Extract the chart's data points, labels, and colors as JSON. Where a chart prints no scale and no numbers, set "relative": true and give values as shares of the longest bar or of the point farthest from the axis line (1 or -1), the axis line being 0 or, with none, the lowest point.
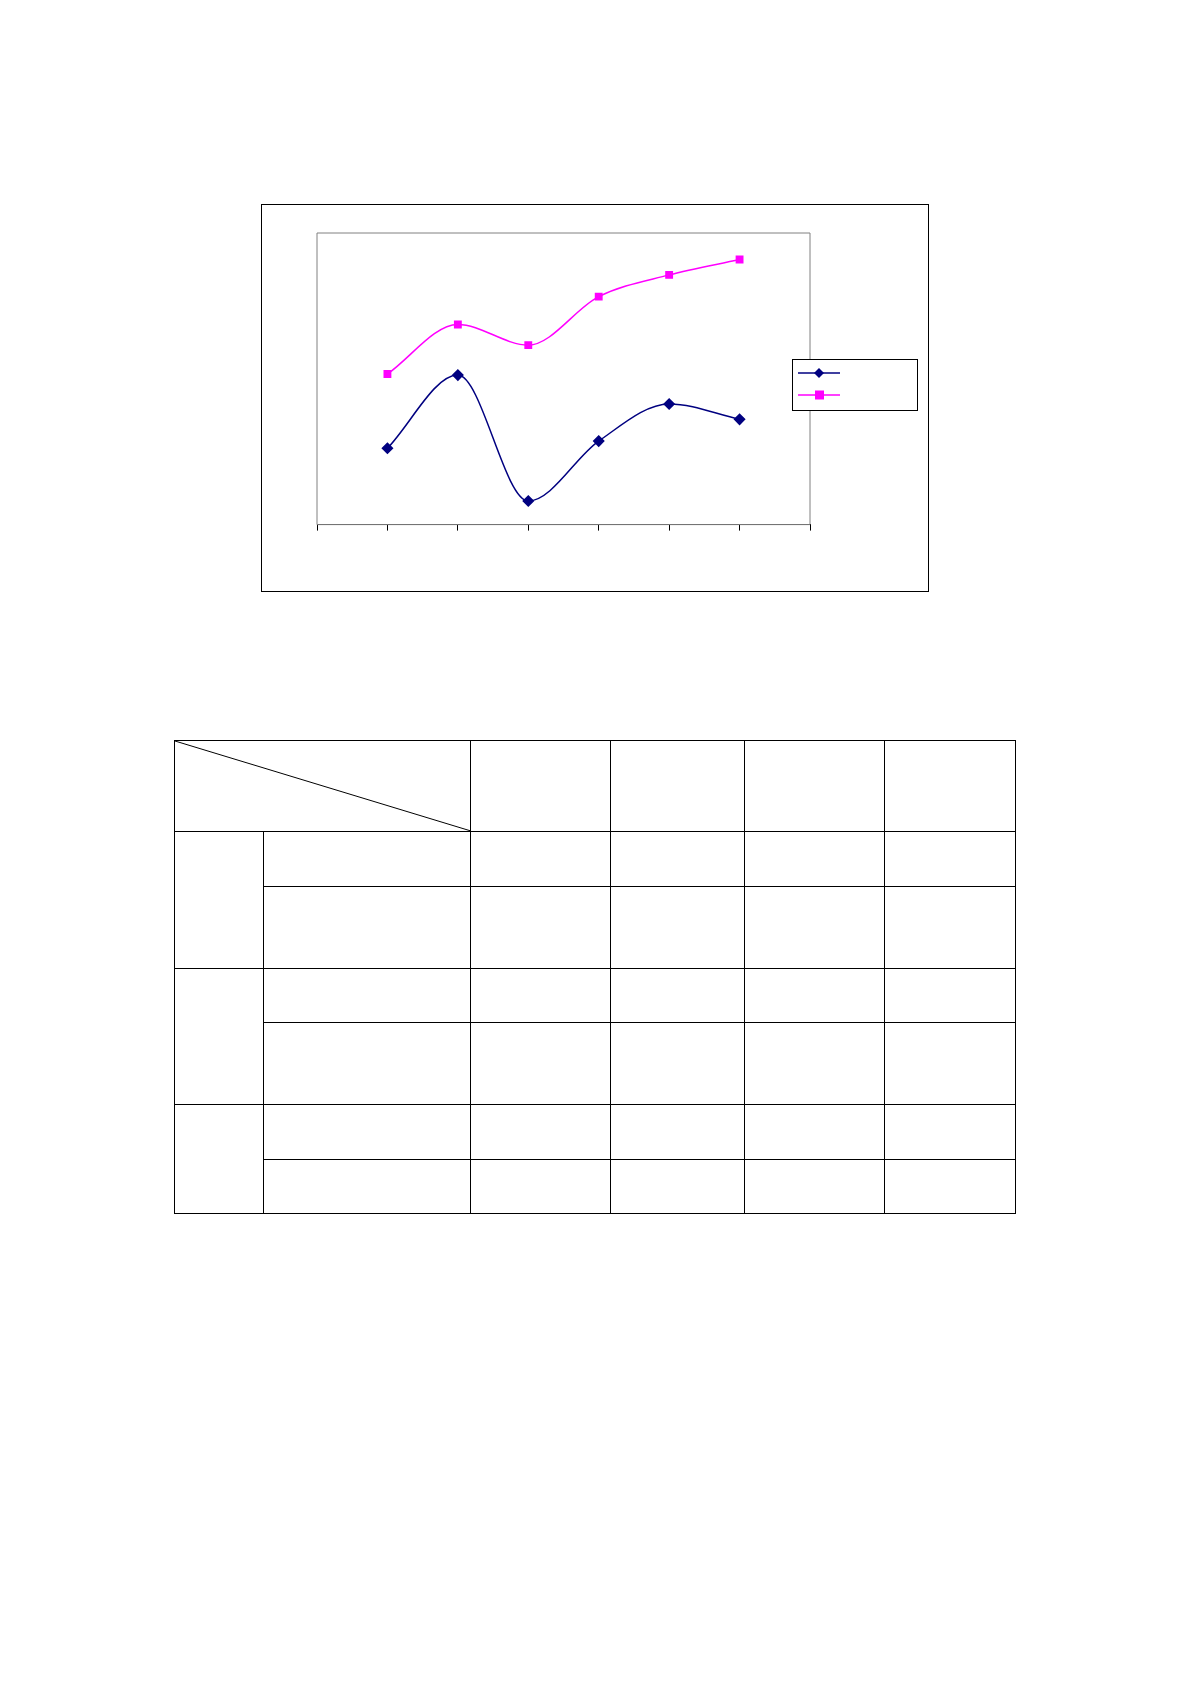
{
  "chart_data": {
    "type": "line",
    "relative": true,
    "categories": [
      null,
      null,
      null,
      null,
      null,
      null
    ],
    "grid": false,
    "series": [
      {
        "color": "#000080",
        "marker": "diamond",
        "values": [
          0.288,
          0.564,
          0.089,
          0.315,
          0.455,
          0.397
        ]
      },
      {
        "color": "#ff00ff",
        "marker": "square",
        "values": [
          0.568,
          0.755,
          0.677,
          0.86,
          0.942,
          1
        ]
      }
    ]
  }
}
